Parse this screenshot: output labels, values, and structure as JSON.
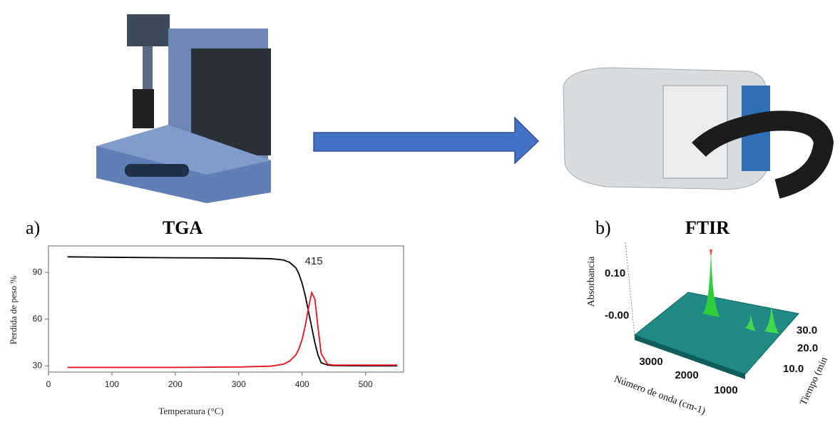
{
  "labels": {
    "panel_a": "a)",
    "instrument_a": "TGA",
    "panel_b": "b)",
    "instrument_b": "FTIR"
  },
  "chart_data": {
    "type": "line",
    "x_label": "Temperatura (°C)",
    "y_label": "Perdida de peso %",
    "x": [
      30,
      100,
      200,
      300,
      350,
      370,
      380,
      390,
      395,
      400,
      405,
      410,
      415,
      420,
      425,
      430,
      440,
      450,
      500,
      550
    ],
    "series": [
      {
        "color": "#000000",
        "values": [
          100,
          99.7,
          99.4,
          99.2,
          98.8,
          98,
          96.5,
          93,
          89,
          83,
          75,
          65,
          55,
          45,
          37,
          32,
          30.5,
          30.2,
          30,
          30
        ]
      },
      {
        "color": "#e8141b",
        "values": [
          29,
          29,
          29,
          29.3,
          29.8,
          31,
          33,
          37,
          41,
          47,
          56,
          67,
          77,
          73,
          55,
          38,
          31,
          30.5,
          30.5,
          30.5
        ]
      }
    ],
    "annotations": [
      {
        "text": "415",
        "x": 415,
        "y": 97
      }
    ],
    "xlim": [
      0,
      560
    ],
    "xticks": [
      0,
      100,
      200,
      300,
      400,
      500
    ],
    "ylim": [
      26,
      107
    ],
    "yticks": [
      30,
      60,
      90
    ]
  },
  "ftir": {
    "z_label": "Absorbancia",
    "z_ticks": [
      "0.10",
      "-0.00"
    ],
    "x_label": "Número de onda (cm-1)",
    "x_ticks": [
      "3000",
      "2000",
      "1000"
    ],
    "y_label": "Tiempo (min",
    "y_ticks": [
      "30.0",
      "20.0",
      "10.0"
    ]
  }
}
